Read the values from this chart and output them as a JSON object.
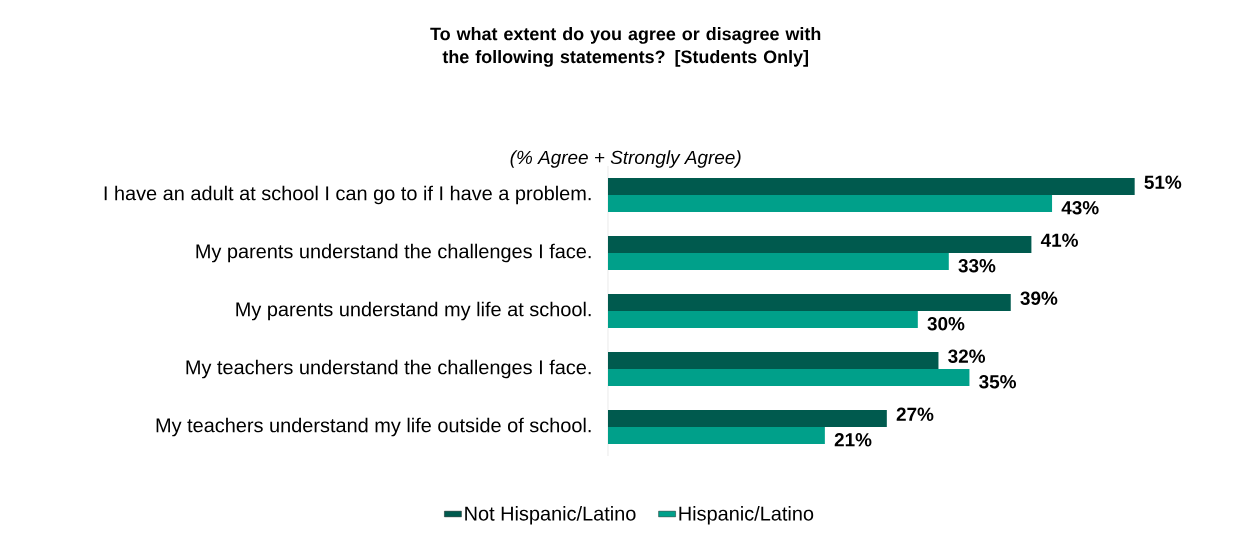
{
  "chart_data": {
    "type": "bar",
    "orientation": "horizontal",
    "title": "To what extent do you agree or disagree with the following statements? [Students Only]",
    "subtitle": "(% Agree + Strongly Agree)",
    "categories": [
      "I have an adult at school I can go to if I have a problem.",
      "My parents understand the challenges I face.",
      "My parents understand my life at school.",
      "My teachers understand the challenges I face.",
      "My teachers understand my life outside of school."
    ],
    "series": [
      {
        "name": "Not Hispanic/Latino",
        "color": "#005a4e",
        "values": [
          51,
          41,
          39,
          32,
          27
        ],
        "value_labels": [
          "51%",
          "41%",
          "39%",
          "32%",
          "27%"
        ]
      },
      {
        "name": "Hispanic/Latino",
        "color": "#00a08a",
        "values": [
          43,
          33,
          30,
          35,
          21
        ],
        "value_labels": [
          "43%",
          "33%",
          "30%",
          "35%",
          "21%"
        ]
      }
    ],
    "legend": "bottom",
    "tick_labels": "y"
  }
}
